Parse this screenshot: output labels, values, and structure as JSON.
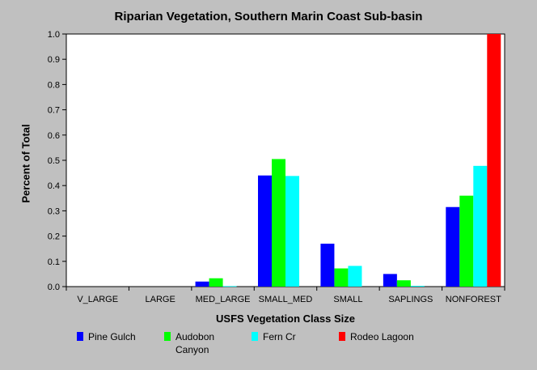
{
  "chart_data": {
    "type": "bar",
    "title": "Riparian Vegetation, Southern Marin Coast Sub-basin",
    "xlabel": "USFS Vegetation Class Size",
    "ylabel": "Percent of Total",
    "categories": [
      "V_LARGE",
      "LARGE",
      "MED_LARGE",
      "SMALL_MED",
      "SMALL",
      "SAPLINGS",
      "NONFOREST"
    ],
    "ylim": [
      0,
      1.0
    ],
    "yticks": [
      "0.0",
      "0.1",
      "0.2",
      "0.3",
      "0.4",
      "0.5",
      "0.6",
      "0.7",
      "0.8",
      "0.9",
      "1.0"
    ],
    "grid": false,
    "legend_position": "bottom",
    "series": [
      {
        "name": "Pine Gulch",
        "legend_lines": [
          "Pine Gulch"
        ],
        "color": "#0000ff",
        "values": [
          0,
          0,
          0.02,
          0.44,
          0.17,
          0.05,
          0.315
        ]
      },
      {
        "name": "Audobon Canyon",
        "legend_lines": [
          "Audobon",
          "Canyon"
        ],
        "color": "#00ff00",
        "values": [
          0,
          0,
          0.033,
          0.505,
          0.072,
          0.025,
          0.36
        ]
      },
      {
        "name": "Fern Cr",
        "legend_lines": [
          "Fern Cr"
        ],
        "color": "#00ffff",
        "values": [
          0,
          0,
          0.002,
          0.438,
          0.082,
          0.003,
          0.478
        ]
      },
      {
        "name": "Rodeo Lagoon",
        "legend_lines": [
          "Rodeo Lagoon"
        ],
        "color": "#ff0000",
        "values": [
          0,
          0,
          0,
          0,
          0,
          0,
          1.0
        ]
      }
    ]
  }
}
